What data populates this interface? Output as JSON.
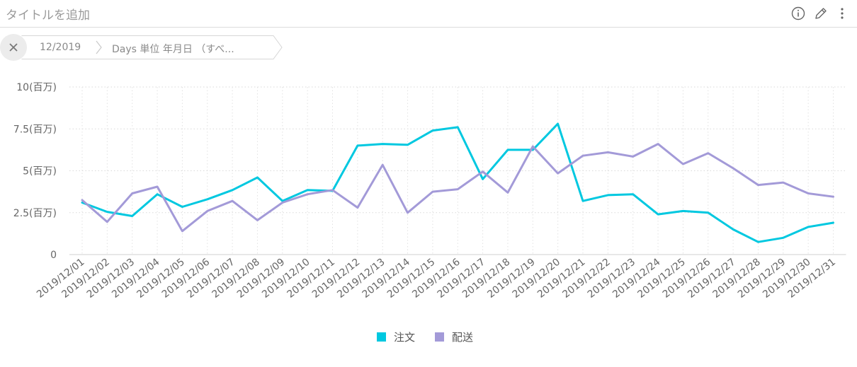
{
  "header": {
    "title": "タイトルを追加",
    "icons": [
      "info-icon",
      "pencil-icon",
      "more-vertical-icon"
    ]
  },
  "breadcrumb": {
    "items": [
      "12/2019",
      "Days 単位 年月日 （すべ..."
    ]
  },
  "colors": {
    "series_1": "#00c8e0",
    "series_2": "#a39ad8"
  },
  "chart_data": {
    "type": "line",
    "x": [
      "2019/12/01",
      "2019/12/02",
      "2019/12/03",
      "2019/12/04",
      "2019/12/05",
      "2019/12/06",
      "2019/12/07",
      "2019/12/08",
      "2019/12/09",
      "2019/12/10",
      "2019/12/11",
      "2019/12/12",
      "2019/12/13",
      "2019/12/14",
      "2019/12/15",
      "2019/12/16",
      "2019/12/17",
      "2019/12/18",
      "2019/12/19",
      "2019/12/20",
      "2019/12/21",
      "2019/12/22",
      "2019/12/23",
      "2019/12/24",
      "2019/12/25",
      "2019/12/26",
      "2019/12/27",
      "2019/12/28",
      "2019/12/29",
      "2019/12/30",
      "2019/12/31"
    ],
    "series": [
      {
        "name": "注文",
        "color": "#00c8e0",
        "values": [
          3.1,
          2.55,
          2.3,
          3.6,
          2.85,
          3.3,
          3.85,
          4.6,
          3.2,
          3.85,
          3.8,
          6.5,
          6.6,
          6.55,
          7.4,
          7.6,
          4.5,
          6.25,
          6.25,
          7.8,
          3.2,
          3.55,
          3.6,
          2.4,
          2.6,
          2.5,
          1.5,
          0.75,
          1.0,
          1.65,
          1.9
        ]
      },
      {
        "name": "配送",
        "color": "#a39ad8",
        "values": [
          3.25,
          1.95,
          3.65,
          4.05,
          1.4,
          2.6,
          3.2,
          2.05,
          3.1,
          3.6,
          3.85,
          2.8,
          5.35,
          2.5,
          3.75,
          3.9,
          4.95,
          3.7,
          6.45,
          4.85,
          5.9,
          6.1,
          5.85,
          6.6,
          5.4,
          6.05,
          5.15,
          4.15,
          4.3,
          3.65,
          3.45
        ]
      }
    ],
    "y_ticks": [
      {
        "value": 0,
        "label": "0"
      },
      {
        "value": 2.5,
        "label": "2.5(百万)"
      },
      {
        "value": 5,
        "label": "5(百万)"
      },
      {
        "value": 7.5,
        "label": "7.5(百万)"
      },
      {
        "value": 10,
        "label": "10(百万)"
      }
    ],
    "ylim": [
      0,
      10
    ],
    "grid": true,
    "legend_position": "bottom-center"
  }
}
